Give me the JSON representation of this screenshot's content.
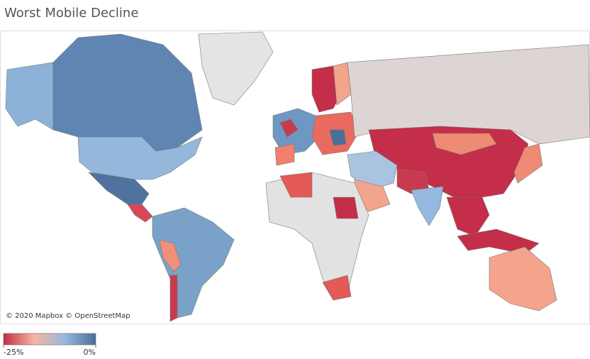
{
  "header": {
    "title": "Worst Mobile Decline"
  },
  "map": {
    "attribution": "© 2020 Mapbox © OpenStreetMap"
  },
  "legend": {
    "min": {
      "value": -25,
      "label": "-25%"
    },
    "max": {
      "value": 0,
      "label": "0%"
    },
    "colors": [
      "#c42e48",
      "#f7b6a0",
      "#93bade",
      "#4a6e9b"
    ]
  }
}
